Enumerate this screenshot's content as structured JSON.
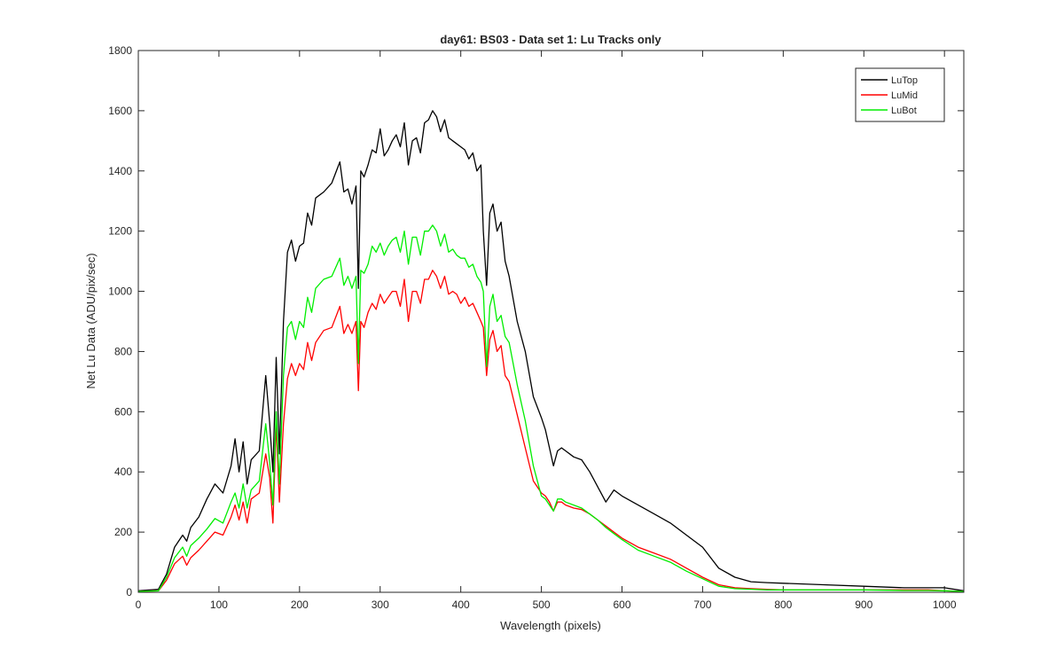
{
  "chart_data": {
    "type": "line",
    "title": "day61: BS03 - Data set 1: Lu Tracks only",
    "xlabel": "Wavelength (pixels)",
    "ylabel": "Net Lu Data (ADU/pix/sec)",
    "xlim": [
      0,
      1024
    ],
    "ylim": [
      0,
      1800
    ],
    "xticks": [
      0,
      100,
      200,
      300,
      400,
      500,
      600,
      700,
      800,
      900,
      1000
    ],
    "yticks": [
      0,
      200,
      400,
      600,
      800,
      1000,
      1200,
      1400,
      1600,
      1800
    ],
    "grid": false,
    "legend_position": "top-right",
    "series": [
      {
        "name": "LuTop",
        "color": "#000000",
        "x": [
          0,
          25,
          35,
          45,
          55,
          60,
          65,
          75,
          85,
          95,
          105,
          115,
          120,
          125,
          130,
          135,
          140,
          150,
          158,
          163,
          167,
          171,
          175,
          180,
          185,
          190,
          195,
          200,
          205,
          210,
          215,
          220,
          230,
          240,
          250,
          255,
          260,
          265,
          270,
          273,
          276,
          280,
          285,
          290,
          295,
          300,
          305,
          310,
          315,
          320,
          325,
          330,
          335,
          340,
          345,
          350,
          355,
          360,
          365,
          370,
          375,
          380,
          385,
          390,
          395,
          400,
          405,
          410,
          415,
          420,
          425,
          428,
          432,
          436,
          440,
          445,
          450,
          455,
          460,
          470,
          480,
          490,
          500,
          505,
          510,
          515,
          520,
          525,
          530,
          540,
          550,
          560,
          570,
          580,
          590,
          600,
          620,
          640,
          660,
          680,
          700,
          720,
          740,
          760,
          780,
          800,
          850,
          900,
          950,
          980,
          1000,
          1024
        ],
        "y": [
          5,
          10,
          60,
          150,
          190,
          170,
          215,
          250,
          310,
          360,
          330,
          420,
          510,
          400,
          500,
          360,
          440,
          470,
          720,
          560,
          400,
          780,
          460,
          900,
          1130,
          1170,
          1100,
          1150,
          1160,
          1260,
          1220,
          1310,
          1330,
          1360,
          1430,
          1330,
          1340,
          1290,
          1350,
          1010,
          1400,
          1380,
          1420,
          1470,
          1460,
          1540,
          1450,
          1470,
          1500,
          1520,
          1480,
          1560,
          1420,
          1500,
          1510,
          1460,
          1560,
          1570,
          1600,
          1580,
          1530,
          1570,
          1510,
          1500,
          1490,
          1480,
          1470,
          1440,
          1460,
          1400,
          1420,
          1200,
          1020,
          1260,
          1290,
          1200,
          1230,
          1100,
          1050,
          900,
          800,
          650,
          580,
          540,
          480,
          420,
          470,
          480,
          470,
          450,
          440,
          400,
          350,
          300,
          340,
          320,
          290,
          260,
          230,
          190,
          150,
          80,
          50,
          35,
          32,
          30,
          25,
          20,
          15,
          15,
          15,
          5
        ]
      },
      {
        "name": "LuMid",
        "color": "#ff0000",
        "x": [
          0,
          25,
          35,
          45,
          55,
          60,
          65,
          75,
          85,
          95,
          105,
          115,
          120,
          125,
          130,
          135,
          140,
          150,
          158,
          163,
          167,
          171,
          175,
          180,
          185,
          190,
          195,
          200,
          205,
          210,
          215,
          220,
          230,
          240,
          250,
          255,
          260,
          265,
          270,
          273,
          276,
          280,
          285,
          290,
          295,
          300,
          305,
          310,
          315,
          320,
          325,
          330,
          335,
          340,
          345,
          350,
          355,
          360,
          365,
          370,
          375,
          380,
          385,
          390,
          395,
          400,
          405,
          410,
          415,
          420,
          425,
          428,
          432,
          436,
          440,
          445,
          450,
          455,
          460,
          470,
          480,
          490,
          500,
          505,
          510,
          515,
          520,
          525,
          530,
          540,
          550,
          560,
          570,
          580,
          590,
          600,
          620,
          640,
          660,
          680,
          700,
          720,
          740,
          760,
          780,
          800,
          850,
          900,
          950,
          980,
          1000,
          1024
        ],
        "y": [
          3,
          5,
          40,
          95,
          120,
          90,
          115,
          140,
          170,
          200,
          190,
          250,
          290,
          240,
          300,
          230,
          310,
          330,
          460,
          380,
          230,
          560,
          300,
          560,
          710,
          760,
          720,
          760,
          740,
          830,
          770,
          830,
          870,
          880,
          950,
          860,
          890,
          860,
          900,
          670,
          900,
          880,
          930,
          960,
          940,
          990,
          960,
          980,
          1000,
          1000,
          950,
          1040,
          900,
          1000,
          1000,
          960,
          1040,
          1040,
          1070,
          1050,
          1010,
          1050,
          990,
          1000,
          990,
          960,
          980,
          950,
          960,
          930,
          900,
          880,
          720,
          840,
          870,
          800,
          820,
          720,
          700,
          590,
          480,
          370,
          330,
          320,
          300,
          270,
          300,
          300,
          290,
          280,
          275,
          260,
          240,
          220,
          200,
          180,
          150,
          130,
          110,
          80,
          50,
          25,
          15,
          12,
          10,
          8,
          8,
          8,
          8,
          8,
          5,
          3
        ]
      },
      {
        "name": "LuBot",
        "color": "#00ee00",
        "x": [
          0,
          25,
          35,
          45,
          55,
          60,
          65,
          75,
          85,
          95,
          105,
          115,
          120,
          125,
          130,
          135,
          140,
          150,
          158,
          163,
          167,
          171,
          175,
          180,
          185,
          190,
          195,
          200,
          205,
          210,
          215,
          220,
          230,
          240,
          250,
          255,
          260,
          265,
          270,
          273,
          276,
          280,
          285,
          290,
          295,
          300,
          305,
          310,
          315,
          320,
          325,
          330,
          335,
          340,
          345,
          350,
          355,
          360,
          365,
          370,
          375,
          380,
          385,
          390,
          395,
          400,
          405,
          410,
          415,
          420,
          425,
          428,
          432,
          436,
          440,
          445,
          450,
          455,
          460,
          470,
          480,
          490,
          500,
          505,
          510,
          515,
          520,
          525,
          530,
          540,
          550,
          560,
          570,
          580,
          590,
          600,
          620,
          640,
          660,
          680,
          700,
          720,
          740,
          760,
          780,
          800,
          850,
          900,
          950,
          980,
          1000,
          1024
        ],
        "y": [
          3,
          5,
          50,
          115,
          150,
          120,
          155,
          180,
          210,
          245,
          230,
          300,
          330,
          280,
          360,
          280,
          340,
          370,
          560,
          430,
          290,
          600,
          360,
          720,
          880,
          900,
          840,
          900,
          880,
          980,
          930,
          1010,
          1040,
          1050,
          1110,
          1020,
          1050,
          1010,
          1050,
          760,
          1070,
          1060,
          1090,
          1150,
          1130,
          1160,
          1120,
          1150,
          1170,
          1180,
          1130,
          1200,
          1090,
          1180,
          1180,
          1120,
          1200,
          1200,
          1220,
          1200,
          1150,
          1190,
          1130,
          1140,
          1120,
          1110,
          1110,
          1080,
          1090,
          1050,
          1030,
          1000,
          750,
          950,
          990,
          900,
          920,
          850,
          830,
          690,
          570,
          420,
          320,
          310,
          290,
          270,
          310,
          310,
          300,
          290,
          280,
          260,
          240,
          215,
          195,
          175,
          140,
          120,
          100,
          70,
          45,
          20,
          12,
          10,
          8,
          8,
          8,
          8,
          6,
          6,
          5,
          3
        ]
      }
    ]
  }
}
